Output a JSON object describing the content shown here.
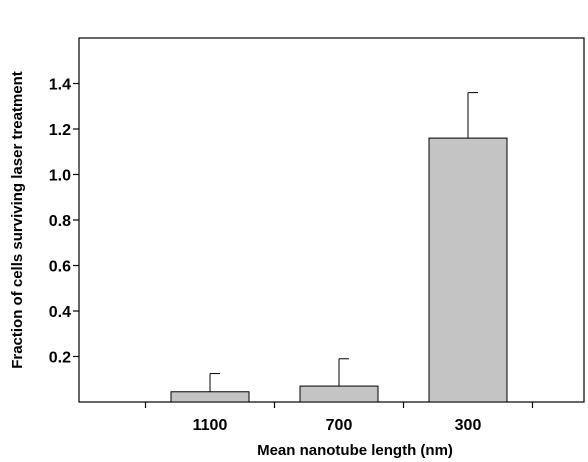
{
  "chart_data": {
    "type": "bar",
    "title": "",
    "xlabel": "Mean nanotube length (nm)",
    "ylabel": "Fraction of cells surviving laser treatment",
    "categories": [
      "1100",
      "700",
      "300"
    ],
    "values": [
      0.045,
      0.07,
      1.16
    ],
    "error_upper": [
      0.125,
      0.19,
      1.36
    ],
    "ylim": [
      0,
      1.6
    ],
    "yticks": [
      0.2,
      0.4,
      0.6,
      0.8,
      1.0,
      1.2,
      1.4
    ],
    "ytick_labels": [
      "0.2",
      "0.4",
      "0.6",
      "0.8",
      "1.0",
      "1.2",
      "1.4"
    ],
    "grid": false,
    "legend": "none",
    "colors": {
      "bar_fill": "#c4c4c4",
      "bar_stroke": "#000000",
      "axis": "#000000"
    }
  }
}
